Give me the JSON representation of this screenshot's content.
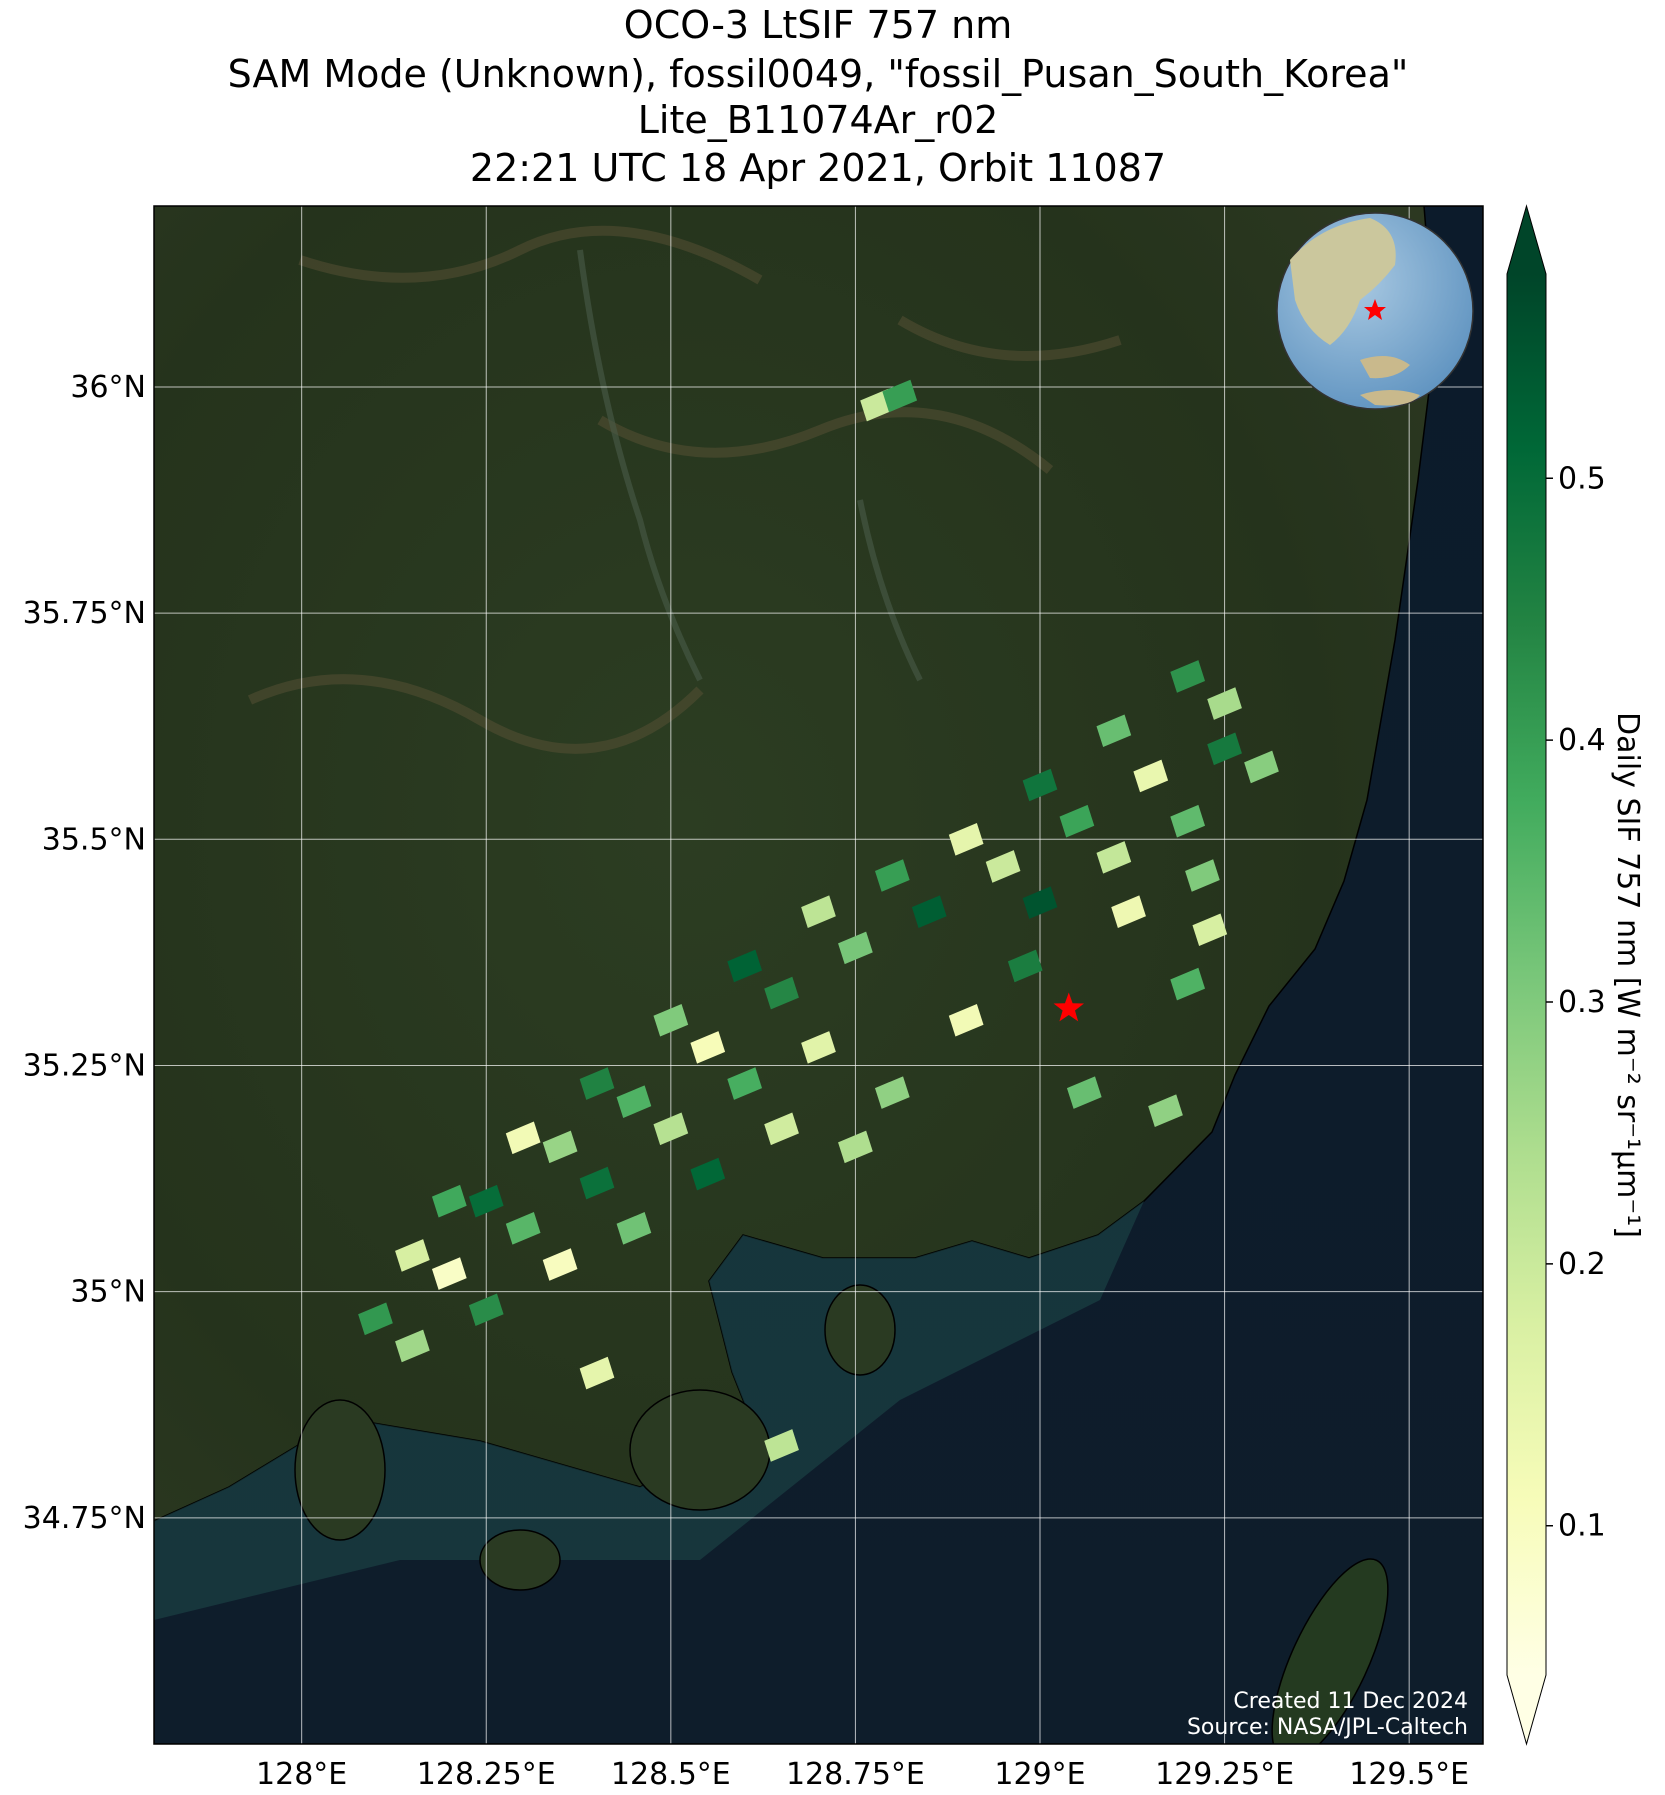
{
  "chart_data": {
    "type": "map",
    "title": [
      "OCO-3 LtSIF 757 nm",
      "SAM Mode (Unknown), fossil0049, \"fossil_Pusan_South_Korea\"",
      "Lite_B11074Ar_r02",
      "22:21 UTC 18 Apr 2021, Orbit 11087"
    ],
    "xlim": [
      127.8,
      129.6
    ],
    "ylim": [
      34.5,
      36.2
    ],
    "xticks": [
      {
        "value": 128,
        "label": "128°E"
      },
      {
        "value": 128.25,
        "label": "128.25°E"
      },
      {
        "value": 128.5,
        "label": "128.5°E"
      },
      {
        "value": 128.75,
        "label": "128.75°E"
      },
      {
        "value": 129,
        "label": "129°E"
      },
      {
        "value": 129.25,
        "label": "129.25°E"
      },
      {
        "value": 129.5,
        "label": "129.5°E"
      }
    ],
    "yticks": [
      {
        "value": 34.75,
        "label": "34.75°N"
      },
      {
        "value": 35,
        "label": "35°N"
      },
      {
        "value": 35.25,
        "label": "35.25°N"
      },
      {
        "value": 35.5,
        "label": "35.5°N"
      },
      {
        "value": 35.75,
        "label": "35.75°N"
      },
      {
        "value": 36,
        "label": "36°N"
      }
    ],
    "grid": true,
    "colorbar": {
      "label": "Daily SIF 757 nm [W m⁻² sr⁻¹µm⁻¹]",
      "clim": [
        0.043,
        0.578
      ],
      "ticks": [
        0.1,
        0.2,
        0.3,
        0.4,
        0.5
      ],
      "colormap": [
        "#ffffe5",
        "#f7fcb9",
        "#d9f0a3",
        "#addd8e",
        "#78c679",
        "#41ab5d",
        "#238443",
        "#006837",
        "#004529"
      ]
    },
    "footprints": {
      "lon": [
        128.2,
        128.3,
        128.4,
        128.5,
        128.6,
        128.7,
        128.8,
        128.9,
        129.0,
        129.1,
        129.2,
        129.25,
        128.15,
        128.25,
        128.35,
        128.45,
        128.55,
        128.65,
        128.75,
        128.85,
        128.95,
        129.05,
        129.15,
        129.25,
        129.3,
        128.1,
        128.2,
        128.3,
        128.4,
        128.5,
        128.6,
        128.7,
        128.8,
        128.9,
        129.0,
        129.1,
        129.2,
        128.15,
        128.25,
        128.35,
        128.45,
        128.55,
        128.65,
        128.75,
        128.98,
        129.12,
        129.22,
        128.78,
        128.81,
        128.4,
        128.65,
        129.06,
        129.17,
        129.2,
        129.23
      ],
      "lat": [
        35.1,
        35.17,
        35.23,
        35.3,
        35.36,
        35.42,
        35.46,
        35.5,
        35.56,
        35.62,
        35.68,
        35.65,
        35.04,
        35.1,
        35.16,
        35.21,
        35.27,
        35.33,
        35.38,
        35.42,
        35.47,
        35.52,
        35.57,
        35.6,
        35.58,
        34.97,
        35.02,
        35.07,
        35.12,
        35.18,
        35.23,
        35.27,
        35.22,
        35.3,
        35.43,
        35.48,
        35.52,
        34.94,
        34.98,
        35.03,
        35.07,
        35.13,
        35.18,
        35.16,
        35.36,
        35.42,
        35.46,
        35.98,
        35.99,
        34.91,
        34.83,
        35.22,
        35.2,
        35.34,
        35.4
      ],
      "values": [
        0.38,
        0.12,
        0.45,
        0.3,
        0.52,
        0.22,
        0.4,
        0.15,
        0.48,
        0.33,
        0.42,
        0.25,
        0.18,
        0.5,
        0.27,
        0.36,
        0.11,
        0.44,
        0.31,
        0.53,
        0.2,
        0.39,
        0.14,
        0.47,
        0.29,
        0.41,
        0.09,
        0.35,
        0.49,
        0.23,
        0.37,
        0.16,
        0.28,
        0.12,
        0.55,
        0.21,
        0.34,
        0.26,
        0.43,
        0.1,
        0.32,
        0.51,
        0.19,
        0.24,
        0.46,
        0.13,
        0.3,
        0.2,
        0.4,
        0.15,
        0.22,
        0.33,
        0.28,
        0.36,
        0.18
      ]
    },
    "site": {
      "lon": 129.039,
      "lat": 35.313,
      "color": "#ff0000"
    },
    "footer": [
      "Created 11 Dec 2024",
      "Source: NASA/JPL-Caltech"
    ]
  }
}
